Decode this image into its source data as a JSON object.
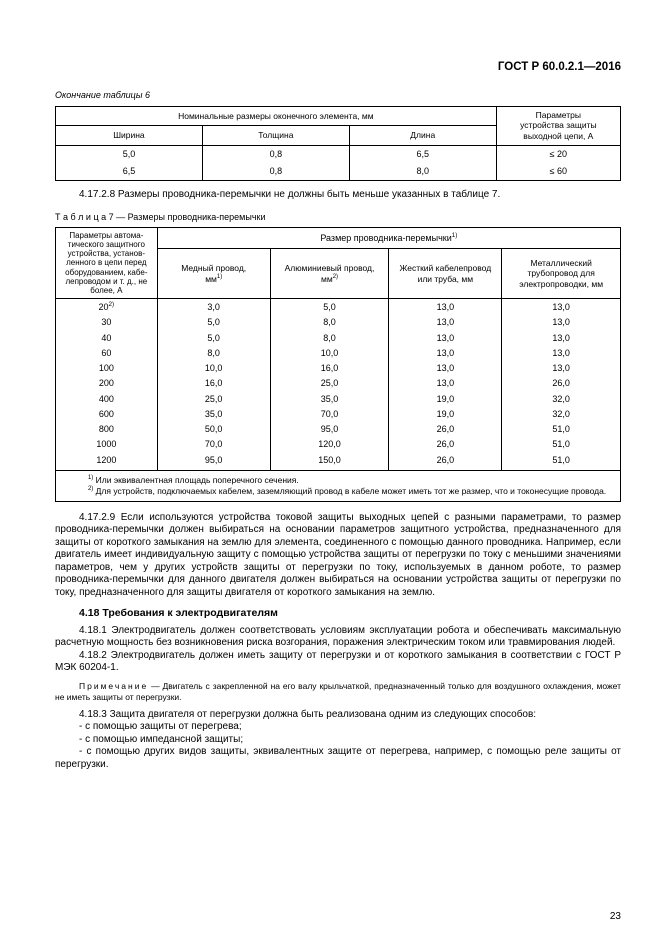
{
  "header": "ГОСТ Р 60.0.2.1—2016",
  "table6": {
    "continuation": "Окончание таблицы 6",
    "group_header": "Номинальные размеры оконечного элемента, мм",
    "params_header_top": "Параметры",
    "params_header_bottom": "устройства защиты выходной цепи, А",
    "col1": "Ширина",
    "col2": "Толщина",
    "col3": "Длина",
    "rows": [
      {
        "w": "5,0",
        "t": "0,8",
        "l": "6,5",
        "p": "≤ 20"
      },
      {
        "w": "6,5",
        "t": "0,8",
        "l": "8,0",
        "p": "≤ 60"
      }
    ]
  },
  "p_4_17_2_8": "4.17.2.8 Размеры проводника-перемычки не должны быть меньше указанных в таблице 7.",
  "table7": {
    "caption": "Т а б л и ц а   7 — Размеры проводника-перемычки",
    "corner": "Параметры автома­тического защитного устройства, установ­ленного в цепи перед оборудованием, кабе­лепроводом и т. д., не более, А",
    "group": "Размер проводника-перемычки",
    "sup_group": "1)",
    "c1": "Медный провод,",
    "c1u": "мм",
    "c2": "Алюминиевый провод,",
    "c2u": "мм",
    "c3": "Жесткий кабелепровод или труба, мм",
    "c4": "Металлический трубопровод для электропроводки, мм",
    "rows": [
      {
        "a": "20",
        "sup": "2)",
        "v1": "3,0",
        "v2": "5,0",
        "v3": "13,0",
        "v4": "13,0"
      },
      {
        "a": "30",
        "v1": "5,0",
        "v2": "8,0",
        "v3": "13,0",
        "v4": "13,0"
      },
      {
        "a": "40",
        "v1": "5,0",
        "v2": "8,0",
        "v3": "13,0",
        "v4": "13,0"
      },
      {
        "a": "60",
        "v1": "8,0",
        "v2": "10,0",
        "v3": "13,0",
        "v4": "13,0"
      },
      {
        "a": "100",
        "v1": "10,0",
        "v2": "16,0",
        "v3": "13,0",
        "v4": "13,0"
      },
      {
        "a": "200",
        "v1": "16,0",
        "v2": "25,0",
        "v3": "13,0",
        "v4": "26,0"
      },
      {
        "a": "400",
        "v1": "25,0",
        "v2": "35,0",
        "v3": "19,0",
        "v4": "32,0"
      },
      {
        "a": "600",
        "v1": "35,0",
        "v2": "70,0",
        "v3": "19,0",
        "v4": "32,0"
      },
      {
        "a": "800",
        "v1": "50,0",
        "v2": "95,0",
        "v3": "26,0",
        "v4": "51,0"
      },
      {
        "a": "1000",
        "v1": "70,0",
        "v2": "120,0",
        "v3": "26,0",
        "v4": "51,0"
      },
      {
        "a": "1200",
        "v1": "95,0",
        "v2": "150,0",
        "v3": "26,0",
        "v4": "51,0"
      }
    ],
    "fn1_sup": "1)",
    "fn1": " Или эквивалентная площадь поперечного сечения.",
    "fn2_sup": "2)",
    "fn2": " Для устройств, подключаемых кабелем, заземляющий провод в кабеле может иметь тот же размер, что и токонесущие провода."
  },
  "p_4_17_2_9": "4.17.2.9 Если используются устройства токовой защиты выходных цепей с разными параметрами, то размер проводника-перемычки должен выбираться на основании параметров защитного устройства, предназначенного для защиты от короткого замыкания на землю для элемента, соединенного с помощью данного проводника. Например, если двигатель имеет индивидуальную защиту с помощью устройства защиты от перегрузки по току с меньшими значениями параметров, чем у других устройств защиты от перегрузки по току, используемых в данном роботе, то размер проводника-перемычки для данного двигателя должен выбираться на основании устройства защиты от перегрузки по току, предназначенного для защиты двигателя от короткого замыкания на землю.",
  "sec_4_18": "4.18 Требования к электродвигателям",
  "p_4_18_1": "4.18.1 Электродвигатель должен соответствовать условиям эксплуатации робота и обеспечивать максимальную расчетную мощность без возникновения риска возгорания, поражения электрическим током или травмирования людей.",
  "p_4_18_2": "4.18.2 Электродвигатель должен иметь защиту от перегрузки и от короткого замыкания в соответствии с ГОСТ Р МЭК 60204-1.",
  "note_label": "Примечание",
  "note_text": " — Двигатель с закрепленной на его валу крыльчаткой, предназначенный только для воздушного охлаждения, может не иметь защиты от перегрузки.",
  "p_4_18_3": "4.18.3 Защита двигателя от перегрузки должна быть реализована одним из следующих способов:",
  "li1": "- с помощью защиты от перегрева;",
  "li2": "- с помощью импедансной защиты;",
  "li3": "- с помощью других видов защиты, эквивалентных защите от перегрева, например, с помощью реле защиты от перегрузки.",
  "pageno": "23"
}
